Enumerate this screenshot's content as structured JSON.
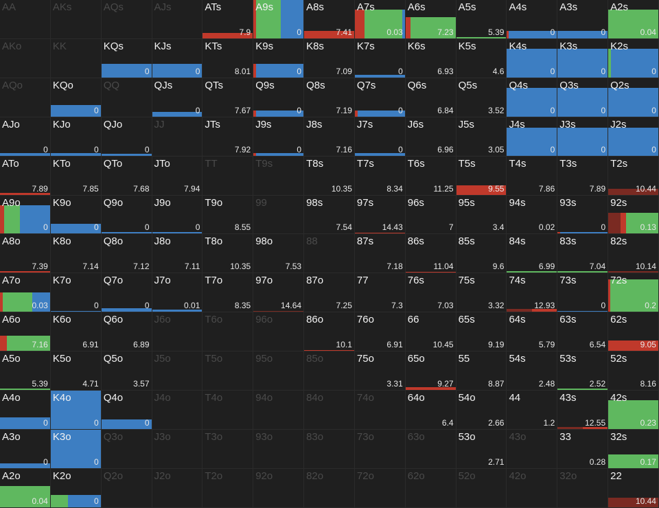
{
  "colors": {
    "red": "#c0392b",
    "darkred": "#7a2a22",
    "green": "#5fb85f",
    "blue": "#3d7ec2",
    "cell_bg": "#1f1f1f",
    "text": "#f2f2f2",
    "dim_text": "#4a4a4a"
  },
  "cells": [
    {
      "label": "AA",
      "dim": true
    },
    {
      "label": "AKs",
      "dim": true
    },
    {
      "label": "AQs",
      "dim": true
    },
    {
      "label": "AJs",
      "dim": true
    },
    {
      "label": "ATs",
      "value": "7.9",
      "bar_level": 0.15,
      "segs": [
        [
          "red",
          1
        ]
      ]
    },
    {
      "label": "A9s",
      "value": "0",
      "bar_level": 1,
      "segs": [
        [
          "red",
          0.05
        ],
        [
          "green",
          0.5
        ],
        [
          "blue",
          0.45
        ]
      ]
    },
    {
      "label": "A8s",
      "value": "7.41",
      "bar_level": 0.2,
      "segs": [
        [
          "red",
          1
        ]
      ]
    },
    {
      "label": "A7s",
      "value": "0.03",
      "bar_level": 0.75,
      "segs": [
        [
          "red",
          0.2
        ],
        [
          "green",
          0.75
        ],
        [
          "blue",
          0.05
        ]
      ]
    },
    {
      "label": "A6s",
      "value": "7.23",
      "bar_level": 0.55,
      "segs": [
        [
          "red",
          0.1
        ],
        [
          "green",
          0.9
        ]
      ]
    },
    {
      "label": "A5s",
      "value": "5.39",
      "bar_level": 0.04,
      "segs": [
        [
          "green",
          1
        ]
      ]
    },
    {
      "label": "A4s",
      "value": "0",
      "bar_level": 0.2,
      "segs": [
        [
          "red",
          0.04
        ],
        [
          "blue",
          0.96
        ]
      ]
    },
    {
      "label": "A3s",
      "value": "0",
      "bar_level": 0.2,
      "segs": [
        [
          "blue",
          1
        ]
      ]
    },
    {
      "label": "A2s",
      "value": "0.04",
      "bar_level": 0.75,
      "segs": [
        [
          "green",
          1
        ]
      ]
    },
    {
      "label": "AKo",
      "dim": true
    },
    {
      "label": "KK",
      "dim": true
    },
    {
      "label": "KQs",
      "value": "0",
      "bar_level": 0.35,
      "segs": [
        [
          "blue",
          1
        ]
      ]
    },
    {
      "label": "KJs",
      "value": "0",
      "bar_level": 0.35,
      "segs": [
        [
          "blue",
          1
        ]
      ]
    },
    {
      "label": "KTs",
      "value": "8.01"
    },
    {
      "label": "K9s",
      "value": "0",
      "bar_level": 0.35,
      "segs": [
        [
          "red",
          0.05
        ],
        [
          "blue",
          0.95
        ]
      ]
    },
    {
      "label": "K8s",
      "value": "7.09"
    },
    {
      "label": "K7s",
      "value": "0",
      "bar_level": 0.06,
      "segs": [
        [
          "blue",
          1
        ]
      ]
    },
    {
      "label": "K6s",
      "value": "6.93"
    },
    {
      "label": "K5s",
      "value": "4.6"
    },
    {
      "label": "K4s",
      "value": "0",
      "bar_level": 0.75,
      "segs": [
        [
          "blue",
          1
        ]
      ]
    },
    {
      "label": "K3s",
      "value": "0",
      "bar_level": 0.75,
      "segs": [
        [
          "blue",
          1
        ]
      ]
    },
    {
      "label": "K2s",
      "value": "0",
      "bar_level": 0.75,
      "segs": [
        [
          "green",
          0.06
        ],
        [
          "blue",
          0.94
        ]
      ]
    },
    {
      "label": "AQo",
      "dim": true
    },
    {
      "label": "KQo",
      "value": "0",
      "bar_level": 0.3,
      "segs": [
        [
          "blue",
          1
        ]
      ]
    },
    {
      "label": "QQ",
      "dim": true
    },
    {
      "label": "QJs",
      "value": "0",
      "bar_level": 0.12,
      "segs": [
        [
          "blue",
          1
        ]
      ]
    },
    {
      "label": "QTs",
      "value": "7.67"
    },
    {
      "label": "Q9s",
      "value": "0",
      "bar_level": 0.15,
      "segs": [
        [
          "red",
          0.05
        ],
        [
          "blue",
          0.95
        ]
      ]
    },
    {
      "label": "Q8s",
      "value": "7.19"
    },
    {
      "label": "Q7s",
      "value": "0",
      "bar_level": 0.15,
      "segs": [
        [
          "red",
          0.05
        ],
        [
          "blue",
          0.95
        ]
      ]
    },
    {
      "label": "Q6s",
      "value": "6.84"
    },
    {
      "label": "Q5s",
      "value": "3.52"
    },
    {
      "label": "Q4s",
      "value": "0",
      "bar_level": 0.75,
      "segs": [
        [
          "blue",
          1
        ]
      ]
    },
    {
      "label": "Q3s",
      "value": "0",
      "bar_level": 0.75,
      "segs": [
        [
          "blue",
          1
        ]
      ]
    },
    {
      "label": "Q2s",
      "value": "0",
      "bar_level": 0.75,
      "segs": [
        [
          "blue",
          1
        ]
      ]
    },
    {
      "label": "AJo",
      "value": "0",
      "bar_level": 0.06,
      "segs": [
        [
          "blue",
          1
        ]
      ]
    },
    {
      "label": "KJo",
      "value": "0",
      "bar_level": 0.06,
      "segs": [
        [
          "blue",
          1
        ]
      ]
    },
    {
      "label": "QJo",
      "value": "0",
      "bar_level": 0.04,
      "segs": [
        [
          "blue",
          1
        ]
      ]
    },
    {
      "label": "JJ",
      "dim": true
    },
    {
      "label": "JTs",
      "value": "7.92"
    },
    {
      "label": "J9s",
      "value": "0",
      "bar_level": 0.06,
      "segs": [
        [
          "red",
          0.05
        ],
        [
          "blue",
          0.95
        ]
      ]
    },
    {
      "label": "J8s",
      "value": "7.16"
    },
    {
      "label": "J7s",
      "value": "0",
      "bar_level": 0.06,
      "segs": [
        [
          "blue",
          1
        ]
      ]
    },
    {
      "label": "J6s",
      "value": "6.96"
    },
    {
      "label": "J5s",
      "value": "3.05"
    },
    {
      "label": "J4s",
      "value": "0",
      "bar_level": 0.72,
      "segs": [
        [
          "blue",
          1
        ]
      ]
    },
    {
      "label": "J3s",
      "value": "0",
      "bar_level": 0.72,
      "segs": [
        [
          "blue",
          1
        ]
      ]
    },
    {
      "label": "J2s",
      "value": "0",
      "bar_level": 0.72,
      "segs": [
        [
          "blue",
          1
        ]
      ]
    },
    {
      "label": "ATo",
      "value": "7.89",
      "bar_level": 0.05,
      "segs": [
        [
          "red",
          1
        ]
      ]
    },
    {
      "label": "KTo",
      "value": "7.85"
    },
    {
      "label": "QTo",
      "value": "7.68"
    },
    {
      "label": "JTo",
      "value": "7.94"
    },
    {
      "label": "TT",
      "dim": true
    },
    {
      "label": "T9s",
      "dim": true
    },
    {
      "label": "T8s",
      "value": "10.35"
    },
    {
      "label": "T7s",
      "value": "8.34"
    },
    {
      "label": "T6s",
      "value": "11.25"
    },
    {
      "label": "T5s",
      "value": "9.55",
      "bar_level": 0.25,
      "segs": [
        [
          "red",
          1
        ]
      ]
    },
    {
      "label": "T4s",
      "value": "7.86"
    },
    {
      "label": "T3s",
      "value": "7.89"
    },
    {
      "label": "T2s",
      "value": "10.44",
      "bar_level": 0.15,
      "segs": [
        [
          "darkred",
          1
        ]
      ]
    },
    {
      "label": "A9o",
      "value": "0",
      "bar_level": 0.75,
      "segs": [
        [
          "red",
          0.08
        ],
        [
          "green",
          0.32
        ],
        [
          "blue",
          0.6
        ]
      ]
    },
    {
      "label": "K9o",
      "value": "0",
      "bar_level": 0.25,
      "segs": [
        [
          "blue",
          1
        ]
      ]
    },
    {
      "label": "Q9o",
      "value": "0",
      "bar_level": 0.05,
      "segs": [
        [
          "blue",
          1
        ]
      ]
    },
    {
      "label": "J9o",
      "value": "0",
      "bar_level": 0.04,
      "segs": [
        [
          "blue",
          1
        ]
      ]
    },
    {
      "label": "T9o",
      "value": "8.55"
    },
    {
      "label": "99",
      "dim": true
    },
    {
      "label": "98s",
      "value": "7.54"
    },
    {
      "label": "97s",
      "value": "14.43",
      "bar_level": 0.03,
      "segs": [
        [
          "red",
          1
        ]
      ]
    },
    {
      "label": "96s",
      "value": "7"
    },
    {
      "label": "95s",
      "value": "3.4"
    },
    {
      "label": "94s",
      "value": "0.02"
    },
    {
      "label": "93s",
      "value": "0",
      "bar_level": 0.05,
      "segs": [
        [
          "red",
          0.05
        ],
        [
          "blue",
          0.95
        ]
      ]
    },
    {
      "label": "92s",
      "value": "0.13",
      "bar_level": 0.55,
      "segs": [
        [
          "darkred",
          0.25
        ],
        [
          "red",
          0.1
        ],
        [
          "green",
          0.65
        ]
      ]
    },
    {
      "label": "A8o",
      "value": "7.39",
      "bar_level": 0.04,
      "segs": [
        [
          "red",
          1
        ]
      ]
    },
    {
      "label": "K8o",
      "value": "7.14"
    },
    {
      "label": "Q8o",
      "value": "7.12"
    },
    {
      "label": "J8o",
      "value": "7.11"
    },
    {
      "label": "T8o",
      "value": "10.35"
    },
    {
      "label": "98o",
      "value": "7.53"
    },
    {
      "label": "88",
      "dim": true
    },
    {
      "label": "87s",
      "value": "7.18"
    },
    {
      "label": "86s",
      "value": "11.04",
      "bar_level": 0.03,
      "segs": [
        [
          "red",
          1
        ]
      ]
    },
    {
      "label": "85s",
      "value": "9.6"
    },
    {
      "label": "84s",
      "value": "6.99",
      "bar_level": 0.05,
      "segs": [
        [
          "green",
          1
        ]
      ]
    },
    {
      "label": "83s",
      "value": "7.04",
      "bar_level": 0.05,
      "segs": [
        [
          "green",
          1
        ]
      ]
    },
    {
      "label": "82s",
      "value": "10.14",
      "bar_level": 0.04,
      "segs": [
        [
          "darkred",
          1
        ]
      ]
    },
    {
      "label": "A7o",
      "value": "0.03",
      "bar_level": 0.5,
      "segs": [
        [
          "red",
          0.05
        ],
        [
          "green",
          0.6
        ],
        [
          "blue",
          0.35
        ]
      ]
    },
    {
      "label": "K7o",
      "value": "0",
      "bar_level": 0.03,
      "segs": [
        [
          "blue",
          1
        ]
      ]
    },
    {
      "label": "Q7o",
      "value": "0",
      "bar_level": 0.1,
      "segs": [
        [
          "blue",
          1
        ]
      ]
    },
    {
      "label": "J7o",
      "value": "0.01",
      "bar_level": 0.06,
      "segs": [
        [
          "blue",
          1
        ]
      ]
    },
    {
      "label": "T7o",
      "value": "8.35"
    },
    {
      "label": "97o",
      "value": "14.64",
      "bar_level": 0.03,
      "segs": [
        [
          "darkred",
          1
        ]
      ]
    },
    {
      "label": "87o",
      "value": "7.25"
    },
    {
      "label": "77",
      "value": "7.3"
    },
    {
      "label": "76s",
      "value": "7.03"
    },
    {
      "label": "75s",
      "value": "3.32"
    },
    {
      "label": "74s",
      "value": "12.93",
      "bar_level": 0.08,
      "segs": [
        [
          "darkred",
          0.5
        ],
        [
          "red",
          0.5
        ]
      ]
    },
    {
      "label": "73s",
      "value": "0",
      "bar_level": 0.03,
      "segs": [
        [
          "blue",
          1
        ]
      ]
    },
    {
      "label": "72s",
      "value": "0.2",
      "bar_level": 0.85,
      "segs": [
        [
          "red",
          0.04
        ],
        [
          "green",
          0.96
        ]
      ]
    },
    {
      "label": "A6o",
      "value": "7.16",
      "bar_level": 0.4,
      "segs": [
        [
          "red",
          0.14
        ],
        [
          "green",
          0.86
        ]
      ]
    },
    {
      "label": "K6o",
      "value": "6.91"
    },
    {
      "label": "Q6o",
      "value": "6.89"
    },
    {
      "label": "J6o",
      "dim": true
    },
    {
      "label": "T6o",
      "dim": true
    },
    {
      "label": "96o",
      "dim": true
    },
    {
      "label": "86o",
      "value": "10.1",
      "bar_level": 0.02,
      "segs": [
        [
          "red",
          1
        ]
      ]
    },
    {
      "label": "76o",
      "value": "6.91"
    },
    {
      "label": "66",
      "value": "10.45"
    },
    {
      "label": "65s",
      "value": "9.19"
    },
    {
      "label": "64s",
      "value": "5.79"
    },
    {
      "label": "63s",
      "value": "6.54"
    },
    {
      "label": "62s",
      "value": "9.05",
      "bar_level": 0.28,
      "segs": [
        [
          "red",
          1
        ]
      ]
    },
    {
      "label": "A5o",
      "value": "5.39",
      "bar_level": 0.03,
      "segs": [
        [
          "green",
          1
        ]
      ]
    },
    {
      "label": "K5o",
      "value": "4.71"
    },
    {
      "label": "Q5o",
      "value": "3.57"
    },
    {
      "label": "J5o",
      "dim": true
    },
    {
      "label": "T5o",
      "dim": true
    },
    {
      "label": "95o",
      "dim": true
    },
    {
      "label": "85o",
      "dim": true
    },
    {
      "label": "75o",
      "value": "3.31"
    },
    {
      "label": "65o",
      "value": "9.27",
      "bar_level": 0.08,
      "segs": [
        [
          "red",
          1
        ]
      ]
    },
    {
      "label": "55",
      "value": "8.87"
    },
    {
      "label": "54s",
      "value": "2.48"
    },
    {
      "label": "53s",
      "value": "2.52",
      "bar_level": 0.03,
      "segs": [
        [
          "green",
          1
        ]
      ]
    },
    {
      "label": "52s",
      "value": "8.16"
    },
    {
      "label": "A4o",
      "value": "0",
      "bar_level": 0.3,
      "segs": [
        [
          "blue",
          1
        ]
      ]
    },
    {
      "label": "K4o",
      "value": "0",
      "bar_level": 1,
      "segs": [
        [
          "blue",
          1
        ]
      ]
    },
    {
      "label": "Q4o",
      "value": "0",
      "bar_level": 0.25,
      "segs": [
        [
          "blue",
          1
        ]
      ]
    },
    {
      "label": "J4o",
      "dim": true
    },
    {
      "label": "T4o",
      "dim": true
    },
    {
      "label": "94o",
      "dim": true
    },
    {
      "label": "84o",
      "dim": true
    },
    {
      "label": "74o",
      "dim": true
    },
    {
      "label": "64o",
      "value": "6.4"
    },
    {
      "label": "54o",
      "value": "2.66"
    },
    {
      "label": "44",
      "value": "1.2"
    },
    {
      "label": "43s",
      "value": "12.55",
      "bar_level": 0.06,
      "segs": [
        [
          "darkred",
          0.5
        ],
        [
          "red",
          0.5
        ]
      ]
    },
    {
      "label": "42s",
      "value": "0.23",
      "bar_level": 0.75,
      "segs": [
        [
          "green",
          1
        ]
      ]
    },
    {
      "label": "A3o",
      "value": "0",
      "bar_level": 0.12,
      "segs": [
        [
          "blue",
          1
        ]
      ]
    },
    {
      "label": "K3o",
      "value": "0",
      "bar_level": 1,
      "segs": [
        [
          "blue",
          1
        ]
      ]
    },
    {
      "label": "Q3o",
      "dim": true
    },
    {
      "label": "J3o",
      "dim": true
    },
    {
      "label": "T3o",
      "dim": true
    },
    {
      "label": "93o",
      "dim": true
    },
    {
      "label": "83o",
      "dim": true
    },
    {
      "label": "73o",
      "dim": true
    },
    {
      "label": "63o",
      "dim": true
    },
    {
      "label": "53o",
      "value": "2.71"
    },
    {
      "label": "43o",
      "dim": true
    },
    {
      "label": "33",
      "value": "0.28"
    },
    {
      "label": "32s",
      "value": "0.17",
      "bar_level": 0.35,
      "segs": [
        [
          "green",
          1
        ]
      ]
    },
    {
      "label": "A2o",
      "value": "0.04",
      "bar_level": 0.55,
      "segs": [
        [
          "green",
          1
        ]
      ]
    },
    {
      "label": "K2o",
      "value": "0",
      "bar_level": 0.32,
      "segs": [
        [
          "green",
          0.35
        ],
        [
          "blue",
          0.65
        ]
      ]
    },
    {
      "label": "Q2o",
      "dim": true
    },
    {
      "label": "J2o",
      "dim": true
    },
    {
      "label": "T2o",
      "dim": true
    },
    {
      "label": "92o",
      "dim": true
    },
    {
      "label": "82o",
      "dim": true
    },
    {
      "label": "72o",
      "dim": true
    },
    {
      "label": "62o",
      "dim": true
    },
    {
      "label": "52o",
      "dim": true
    },
    {
      "label": "42o",
      "dim": true
    },
    {
      "label": "32o",
      "dim": true
    },
    {
      "label": "22",
      "value": "10.44",
      "bar_level": 0.25,
      "segs": [
        [
          "darkred",
          1
        ]
      ]
    }
  ]
}
